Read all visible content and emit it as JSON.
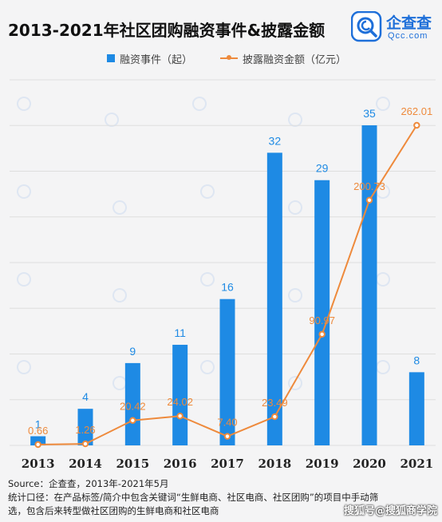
{
  "header": {
    "title": "2013-2021年社区团购融资事件&披露金额",
    "logo_name": "企查查",
    "logo_sub": "Qcc.com"
  },
  "colors": {
    "bar": "#1e8ae4",
    "line": "#ee8a3c",
    "bar_label": "#1e8ae4",
    "line_label": "#ee8a3c",
    "brand": "#1e6fd9"
  },
  "chart_data": {
    "type": "bar",
    "title": "2013-2021年社区团购融资事件&披露金额",
    "categories": [
      "2013",
      "2014",
      "2015",
      "2016",
      "2017",
      "2018",
      "2019",
      "2020",
      "2021"
    ],
    "series": [
      {
        "name": "融资事件（起）",
        "type": "bar",
        "values": [
          1,
          4,
          9,
          11,
          16,
          32,
          29,
          35,
          8
        ]
      },
      {
        "name": "披露融资金额（亿元）",
        "type": "line",
        "values": [
          0.66,
          1.26,
          20.42,
          24.02,
          7.4,
          23.49,
          90.97,
          200.73,
          262.01
        ]
      }
    ],
    "data_labels": {
      "bar": [
        "1",
        "4",
        "9",
        "11",
        "16",
        "32",
        "29",
        "35",
        "8"
      ],
      "line": [
        "0.66",
        "1.26",
        "20.42",
        "24.02",
        "7.40",
        "23.49",
        "90.97",
        "200.73",
        "262.01"
      ]
    },
    "grid": true,
    "legend_position": "top"
  },
  "footer": {
    "source": "Source：企查查，2013年-2021年5月",
    "note_line1": "统计口径：在产品标签/简介中包含关键词“生鲜电商、社区电商、社区团购”的项目中手动筛",
    "note_line2": "选，包含后来转型做社区团购的生鲜电商和社区电商"
  },
  "watermark": {
    "logo_text": "搜狐号@搜狐商学院"
  }
}
